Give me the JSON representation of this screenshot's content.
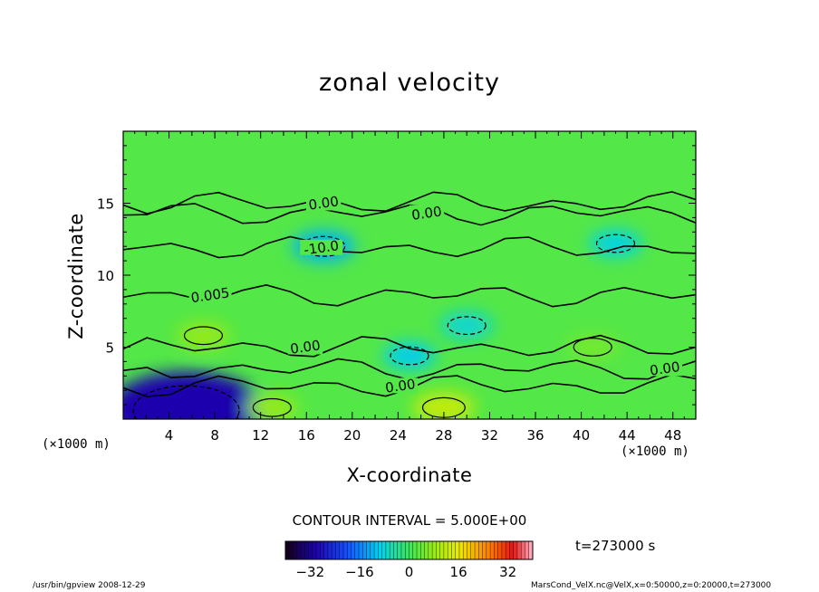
{
  "chart_data": {
    "type": "heatmap",
    "title": "zonal velocity",
    "xlabel": "X-coordinate",
    "ylabel": "Z-coordinate",
    "x_unit_left": "(×1000 m)",
    "x_unit_right": "(×1000 m)",
    "xlim": [
      0,
      50
    ],
    "ylim": [
      0,
      20
    ],
    "x_ticks": [
      4,
      8,
      12,
      16,
      20,
      24,
      28,
      32,
      36,
      40,
      44,
      48
    ],
    "y_ticks": [
      5,
      10,
      15
    ],
    "contour_labels": [
      {
        "text": "0.00",
        "x": 17.5,
        "z": 15.0
      },
      {
        "text": "0.00",
        "x": 26.5,
        "z": 14.3
      },
      {
        "text": "-10.0",
        "x": 17.3,
        "z": 11.9
      },
      {
        "text": "0.005",
        "x": 7.6,
        "z": 8.6
      },
      {
        "text": "0.00",
        "x": 15.9,
        "z": 5.0
      },
      {
        "text": "0.00",
        "x": 47.3,
        "z": 3.5
      },
      {
        "text": "0.00",
        "x": 24.2,
        "z": 2.3
      }
    ],
    "anomalies": [
      {
        "x": 5.5,
        "z": 0.6,
        "value": -30
      },
      {
        "x": 13.0,
        "z": 0.8,
        "value": 8
      },
      {
        "x": 28.0,
        "z": 0.8,
        "value": 12
      },
      {
        "x": 17.5,
        "z": 12.0,
        "value": -12
      },
      {
        "x": 25.0,
        "z": 4.4,
        "value": -10
      },
      {
        "x": 30.0,
        "z": 6.5,
        "value": -8
      },
      {
        "x": 7.0,
        "z": 5.8,
        "value": 8
      },
      {
        "x": 43.0,
        "z": 12.2,
        "value": -9
      },
      {
        "x": 41.0,
        "z": 5.0,
        "value": 5
      }
    ],
    "background_value": 2,
    "contour_interval": "CONTOUR INTERVAL = 5.000E+00",
    "colorbar": {
      "min": -40,
      "max": 40,
      "ticks": [
        -32,
        -16,
        0,
        16,
        32
      ]
    },
    "time_label": "t=273000 s",
    "footer_left": "/usr/bin/gpview   2008-12-29",
    "footer_right": "MarsCond_VelX.nc@VelX,x=0:50000,z=0:20000,t=273000"
  }
}
